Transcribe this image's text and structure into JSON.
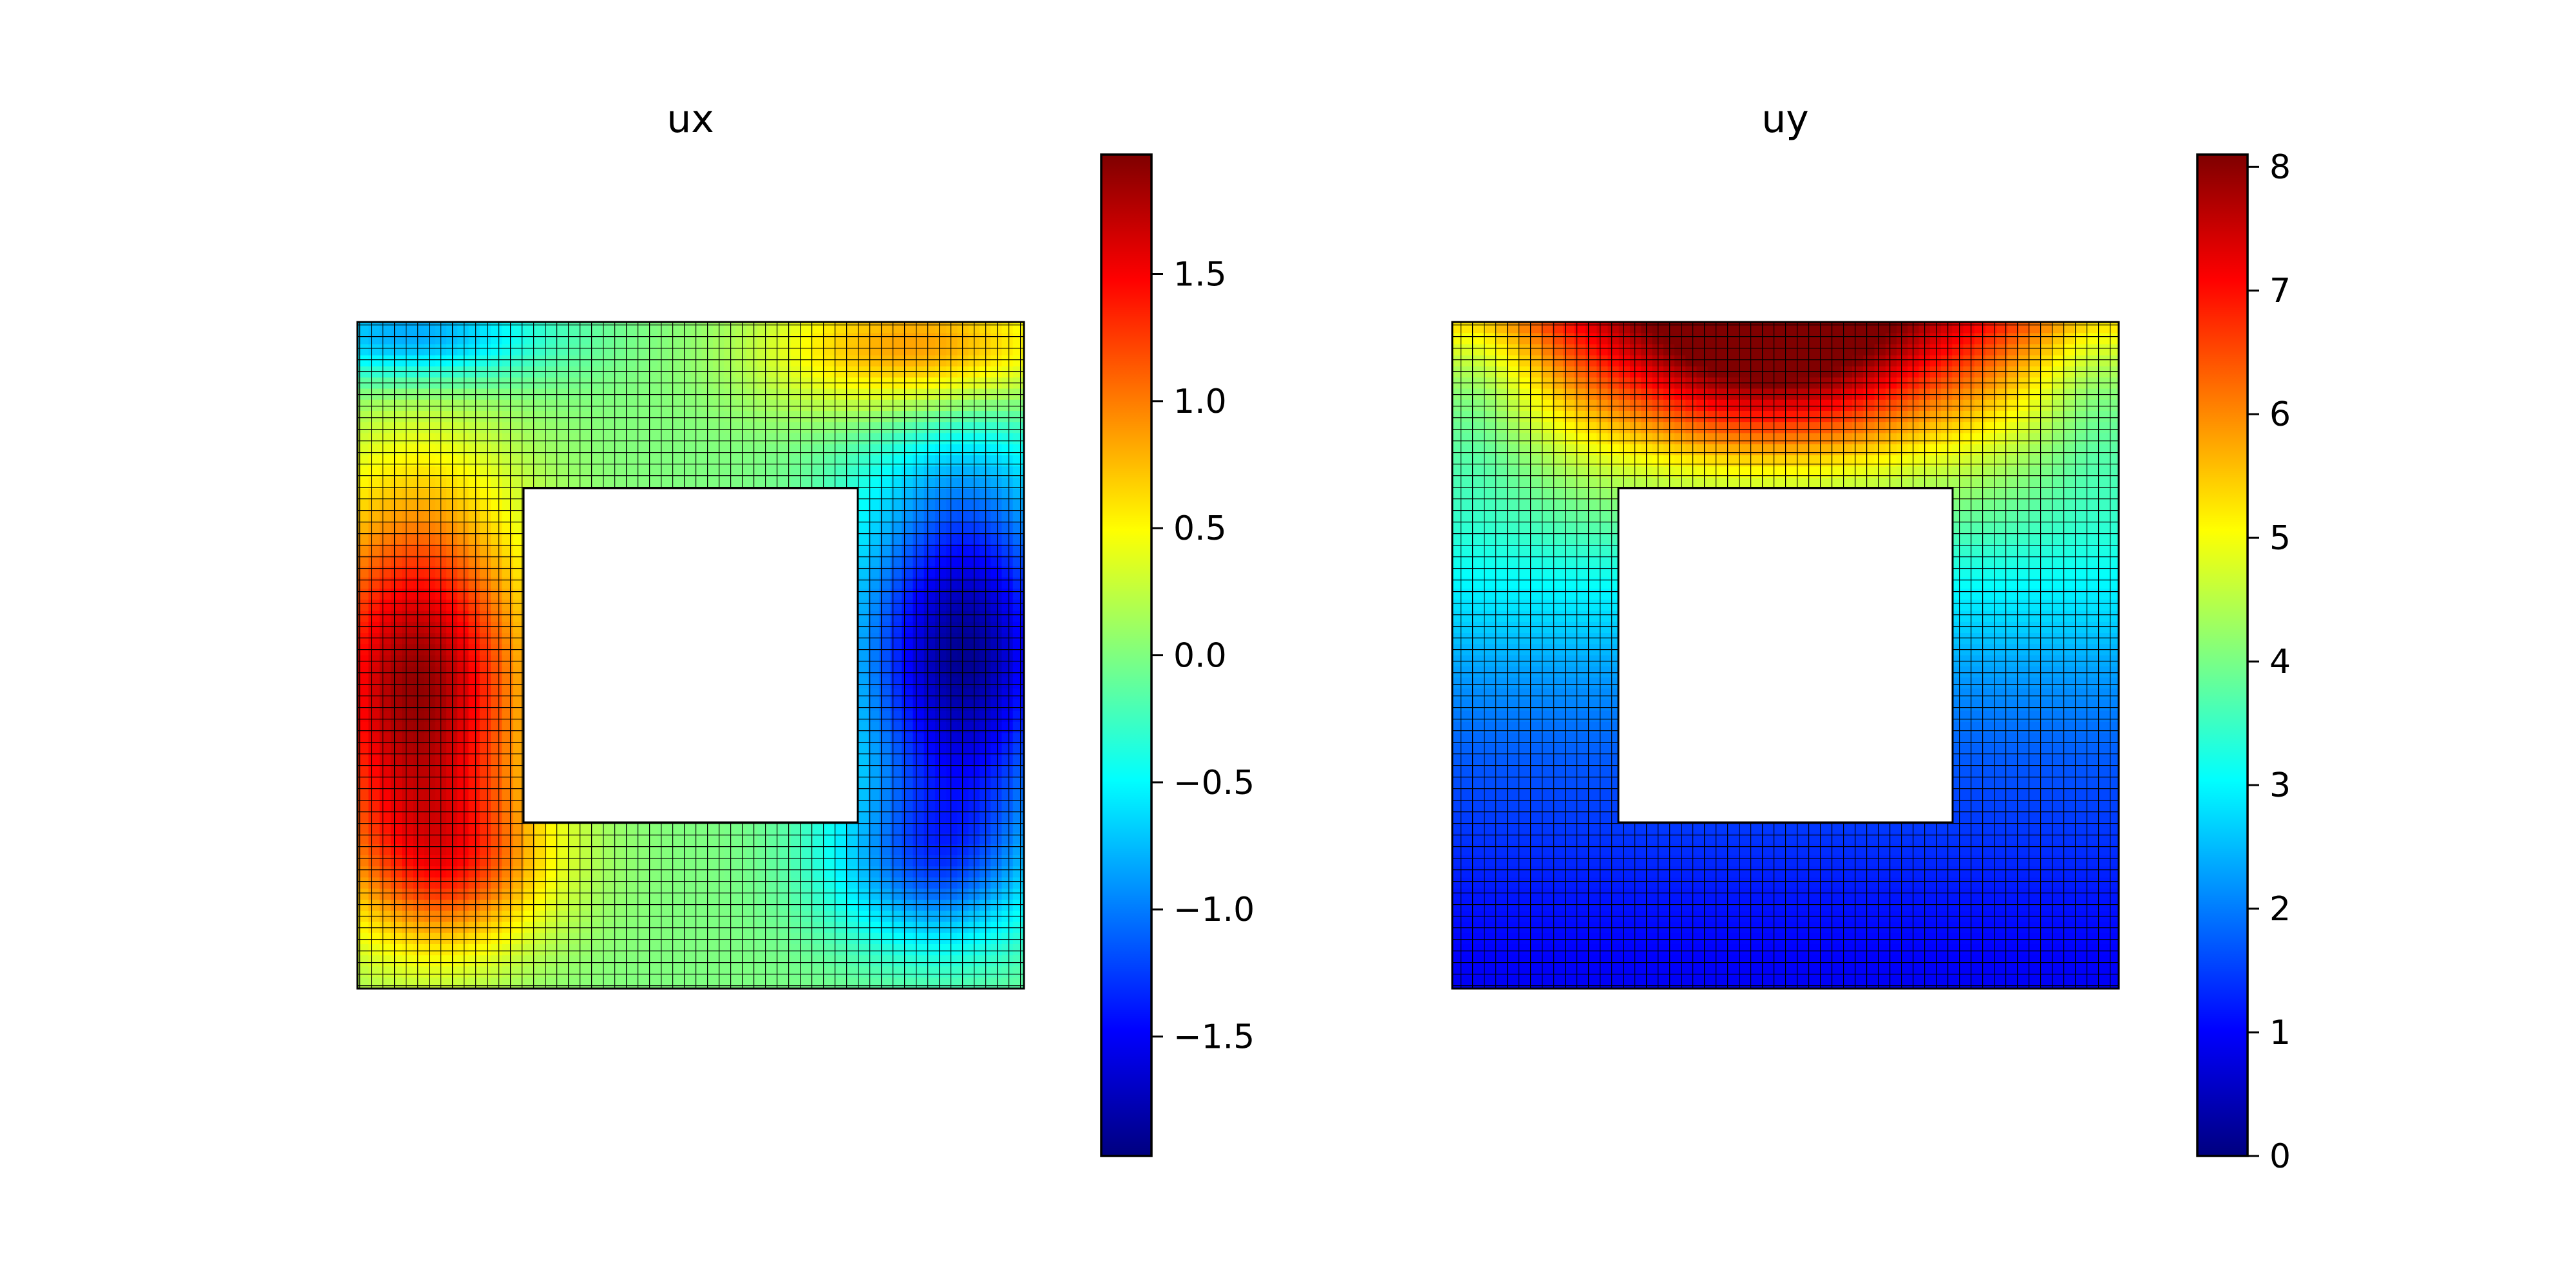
{
  "chart_data": [
    {
      "type": "heatmap",
      "title": "ux",
      "colormap": "jet",
      "field": "ux",
      "value_range": [
        -1.97,
        1.97
      ],
      "colorbar": {
        "ticks": [
          1.5,
          1.0,
          0.5,
          0.0,
          -0.5,
          -1.0,
          -1.5
        ],
        "tick_labels": [
          "1.5",
          "1.0",
          "0.5",
          "0.0",
          "−0.5",
          "−1.0",
          "−1.5"
        ]
      },
      "mesh": "quadrilateral finite-element mesh on a square plate with a square hole",
      "grid": true
    },
    {
      "type": "heatmap",
      "title": "uy",
      "colormap": "jet",
      "field": "uy",
      "value_range": [
        0,
        8.1
      ],
      "colorbar": {
        "ticks": [
          8,
          7,
          6,
          5,
          4,
          3,
          2,
          1,
          0
        ],
        "tick_labels": [
          "8",
          "7",
          "6",
          "5",
          "4",
          "3",
          "2",
          "1",
          "0"
        ]
      },
      "mesh": "quadrilateral finite-element mesh on a square plate with a square hole",
      "grid": true
    }
  ]
}
